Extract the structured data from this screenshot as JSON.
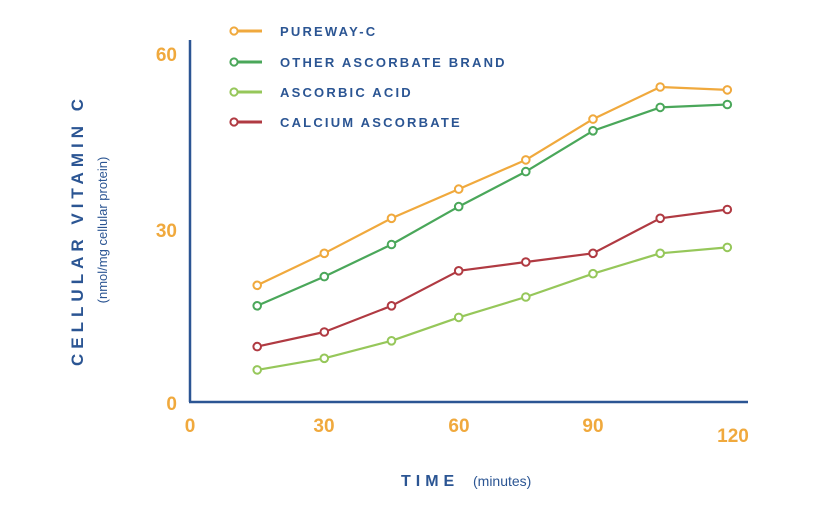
{
  "chart_data": {
    "type": "line",
    "xlabel": "TIME",
    "xlabel_unit": "(minutes)",
    "ylabel": "CELLULAR VITAMIN C",
    "ylabel_unit": "(nmol/mg cellular protein)",
    "xlim": [
      0,
      125
    ],
    "ylim": [
      0,
      60
    ],
    "x_ticks": [
      "0",
      "30",
      "60",
      "90",
      "120"
    ],
    "y_ticks": [
      "0",
      "30",
      "60"
    ],
    "grid": false,
    "legend_position": "top-left",
    "x": [
      15,
      30,
      45,
      60,
      75,
      90,
      105,
      120
    ],
    "series": [
      {
        "name": "PUREWAY-C",
        "color": "#f0a93d",
        "values": [
          20,
          25.5,
          31.5,
          36.5,
          41.5,
          48.5,
          54,
          53.5
        ]
      },
      {
        "name": "OTHER ASCORBATE BRAND",
        "color": "#4aa75a",
        "values": [
          16.5,
          21.5,
          27,
          33.5,
          39.5,
          46.5,
          50.5,
          51
        ]
      },
      {
        "name": "ASCORBIC ACID",
        "color": "#96c75a",
        "values": [
          5.5,
          7.5,
          10.5,
          14.5,
          18,
          22,
          25.5,
          26.5
        ]
      },
      {
        "name": "CALCIUM ASCORBATE",
        "color": "#b03a42",
        "values": [
          9.5,
          12,
          16.5,
          22.5,
          24,
          25.5,
          31.5,
          33
        ]
      }
    ]
  }
}
